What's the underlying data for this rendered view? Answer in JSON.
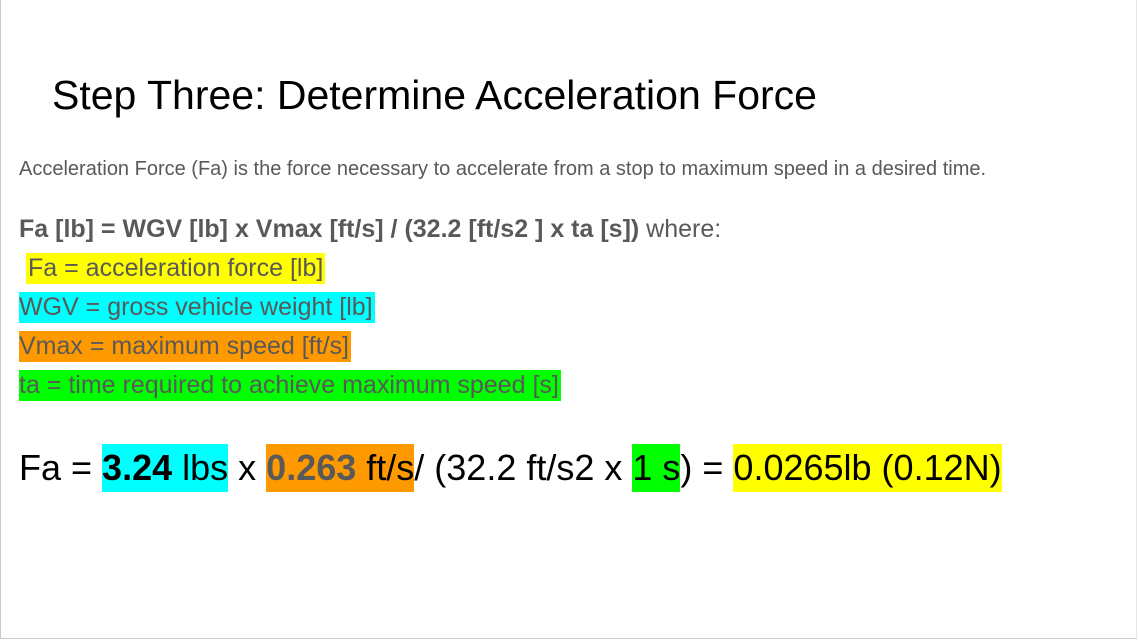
{
  "slide": {
    "title": "Step Three: Determine Acceleration Force",
    "intro": "Acceleration Force (Fa) is the force necessary to accelerate from a stop to maximum speed in a desired time.",
    "formula": {
      "expression": "Fa [lb] = WGV [lb] x Vmax [ft/s] / (32.2 [ft/s2 ] x ta [s])",
      "suffix": " where:"
    },
    "definitions": [
      {
        "text": "Fa = acceleration force [lb]",
        "highlight": "#ffff00"
      },
      {
        "text": "WGV = gross vehicle weight [lb]",
        "highlight": "#00ffff"
      },
      {
        "text": "Vmax = maximum speed [ft/s]",
        "highlight": "#ff9900"
      },
      {
        "text": "ta = time required to achieve maximum speed [s]",
        "highlight": "#00ff00"
      }
    ],
    "calculation": {
      "lhs": "Fa = ",
      "weight_value": "3.24",
      "weight_unit": " lbs",
      "times1": " x ",
      "speed_value": "0.263",
      "speed_unit": " ft/s ",
      "divider": "/ (32.2 ft/s2 x ",
      "time": "1 s",
      "close": ") = ",
      "result": "0.0265lb (0.12N)"
    }
  }
}
